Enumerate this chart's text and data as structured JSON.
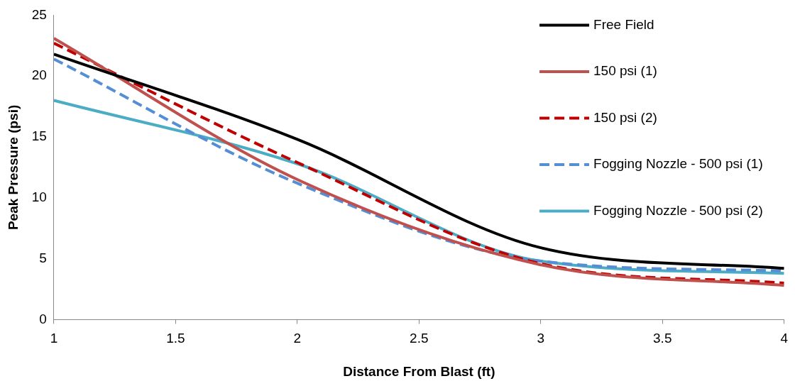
{
  "chart_data": {
    "type": "line",
    "xlabel": "Distance From Blast (ft)",
    "ylabel": "Peak Pressure (psi)",
    "x": [
      1,
      2,
      3,
      4
    ],
    "xlim": [
      1,
      4
    ],
    "xticks": [
      1,
      1.5,
      2,
      2.5,
      3,
      3.5,
      4
    ],
    "ylim": [
      0,
      25
    ],
    "yticks": [
      0,
      5,
      10,
      15,
      20,
      25
    ],
    "grid": false,
    "legend": "top right",
    "marker": "none",
    "series": [
      {
        "name": "Free Field",
        "color": "#000000",
        "values": [
          21.8,
          14.8,
          5.9,
          4.2
        ],
        "line_style": "solid"
      },
      {
        "name": "150 psi (1)",
        "color": "#c0504d",
        "values": [
          23.1,
          11.5,
          4.5,
          2.8
        ],
        "line_style": "solid"
      },
      {
        "name": "150 psi (2)",
        "color": "#c00000",
        "values": [
          22.7,
          12.9,
          4.6,
          3.0
        ],
        "line_style": "dashed"
      },
      {
        "name": "Fogging Nozzle - 500 psi (1)",
        "color": "#558ed5",
        "values": [
          21.4,
          11.2,
          4.8,
          4.0
        ],
        "line_style": "dashed"
      },
      {
        "name": "Fogging Nozzle - 500 psi (2)",
        "color": "#4bacc6",
        "values": [
          18.0,
          12.8,
          4.8,
          3.8
        ],
        "line_style": "solid"
      }
    ]
  }
}
